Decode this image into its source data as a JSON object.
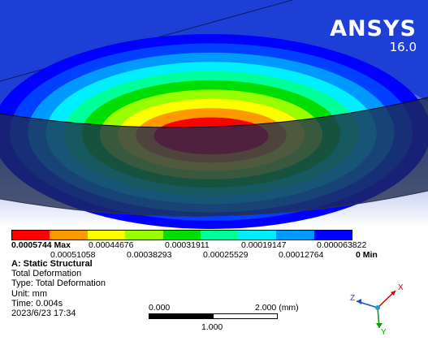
{
  "viewport": {
    "background_top": "#1f3fbf",
    "background_bottom": "#ffffff",
    "contour_colors": [
      "#ff0000",
      "#ff9900",
      "#ffff00",
      "#99ff00",
      "#00dd00",
      "#00ff99",
      "#00eeff",
      "#0099ff",
      "#0040ff",
      "#0000ff"
    ]
  },
  "logo": {
    "brand": "ANSYS",
    "version": "16.0"
  },
  "legend": {
    "colors": [
      "#ff0000",
      "#ff9900",
      "#ffff00",
      "#99ff00",
      "#00dd00",
      "#00ff99",
      "#00eeff",
      "#0099ff",
      "#0000ff"
    ],
    "max_label": "0.0005744 Max",
    "min_label": "0 Min",
    "top_row": [
      "0.00044676",
      "0.00031911",
      "0.00019147",
      "0.000063822"
    ],
    "bottom_row": [
      "0.00051058",
      "0.00038293",
      "0.00025529",
      "0.00012764"
    ]
  },
  "info": {
    "title": "A: Static Structural",
    "line1": "Total Deformation",
    "line2": "Type: Total Deformation",
    "line3": "Unit: mm",
    "line4": "Time: 0.004s",
    "line5": "2023/6/23 17:34"
  },
  "scale": {
    "left_label": "0.000",
    "right_label": "2.000 (mm)",
    "mid_label": "1.000"
  },
  "triad": {
    "x": "X",
    "y": "Y",
    "z": "Z",
    "x_color": "#cc0000",
    "y_color": "#00a000",
    "z_color": "#1a4fd0"
  }
}
